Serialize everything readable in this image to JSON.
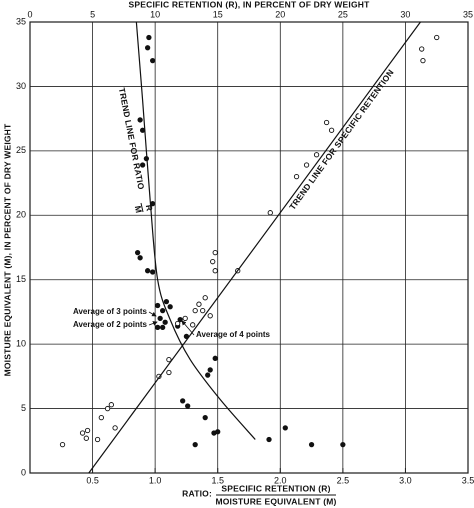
{
  "chart_data": {
    "type": "scatter",
    "title": "SPECIFIC RETENTION (R), IN PERCENT OF DRY WEIGHT",
    "ylabel": "MOISTURE EQUIVALENT (M), IN PERCENT OF DRY WEIGHT",
    "xlabel_prefix": "RATIO:",
    "xlabel_numerator": "SPECIFIC RETENTION (R)",
    "xlabel_denominator": "MOISTURE EQUIVALENT (M)",
    "xlim": [
      0,
      3.5
    ],
    "xticks": [
      0.5,
      {
        "value": 1,
        "label": "1.0"
      },
      1.5,
      {
        "value": 2,
        "label": "2.0"
      },
      2.5,
      {
        "value": 3,
        "label": "3.0"
      },
      3.5
    ],
    "x2lim": [
      0,
      35
    ],
    "x2ticks": [
      0,
      5,
      10,
      15,
      20,
      25,
      30,
      35
    ],
    "ylim": [
      0,
      35
    ],
    "yticks": [
      0,
      5,
      10,
      15,
      20,
      25,
      30,
      35
    ],
    "grid": true,
    "color": "#111111",
    "series": [
      {
        "marker": "filled",
        "axis": "x",
        "x": [
          0.95,
          0.94,
          0.98,
          0.88,
          0.9,
          0.93,
          0.9,
          0.98,
          0.86,
          0.88,
          0.94,
          0.98,
          1.02,
          1.06,
          1.09,
          1.12,
          1.04,
          1.08,
          1.02,
          1.06,
          1.18,
          1.2,
          1.25,
          1.22,
          1.26,
          1.4,
          1.32,
          1.42,
          1.44,
          1.48,
          1.47,
          1.5,
          1.91,
          2.04,
          2.25,
          2.5
        ],
        "y": [
          33.8,
          33.0,
          32.0,
          27.4,
          26.6,
          24.4,
          23.9,
          20.9,
          17.1,
          16.7,
          15.7,
          15.6,
          13.0,
          12.6,
          13.3,
          12.9,
          12.0,
          11.7,
          11.3,
          11.3,
          11.4,
          11.9,
          10.6,
          5.6,
          5.2,
          4.3,
          2.2,
          7.6,
          8.0,
          8.9,
          3.1,
          3.2,
          2.6,
          3.5,
          2.2,
          2.2
        ]
      },
      {
        "marker": "open",
        "axis": "x2",
        "x": [
          2.6,
          4.5,
          4.6,
          4.2,
          5.4,
          5.7,
          6.2,
          6.5,
          6.8,
          10.3,
          11.1,
          11.1,
          11.8,
          12.4,
          13.0,
          13.2,
          13.5,
          13.8,
          14.0,
          14.4,
          14.8,
          14.6,
          14.8,
          16.6,
          19.2,
          21.3,
          22.1,
          22.9,
          23.7,
          24.1,
          31.3,
          31.4,
          32.5
        ],
        "y": [
          2.2,
          2.7,
          3.3,
          3.1,
          2.6,
          4.3,
          5.0,
          5.3,
          3.5,
          7.5,
          8.8,
          7.8,
          11.6,
          12.0,
          11.5,
          12.6,
          13.1,
          12.6,
          13.6,
          12.2,
          15.7,
          16.4,
          17.1,
          15.7,
          20.2,
          23.0,
          23.9,
          24.7,
          27.2,
          26.6,
          32.9,
          32.0,
          33.8
        ]
      }
    ],
    "trend_lines": [
      {
        "axis": "x",
        "label": "TREND LINE FOR RATIO",
        "label_numerator": "R",
        "label_denominator": "M",
        "x": [
          0.85,
          0.9,
          0.96,
          1.02,
          1.12,
          1.28,
          1.52,
          1.8
        ],
        "y": [
          35,
          28.9,
          21.2,
          15,
          11.9,
          8.8,
          5.7,
          2.6
        ]
      },
      {
        "axis": "x2",
        "label": "TREND LINE FOR SPECIFIC RETENTION",
        "x": [
          4.7,
          31.2
        ],
        "y": [
          0,
          35
        ]
      }
    ],
    "annotations": [
      "Average of 3 points",
      "Average of 2 points",
      "Average of 4 points"
    ]
  }
}
